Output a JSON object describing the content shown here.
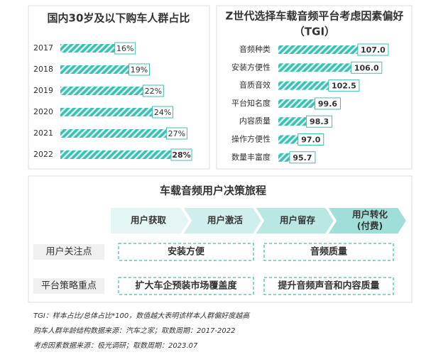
{
  "chart_data": [
    {
      "type": "hbar",
      "title": "国内30岁及以下购车人群占比",
      "categories": [
        "2017",
        "2018",
        "2019",
        "2020",
        "2021",
        "2022"
      ],
      "values": [
        16,
        19,
        22,
        24,
        27,
        28
      ],
      "value_labels": [
        "16%",
        "19%",
        "22%",
        "24%",
        "27%",
        "28%"
      ],
      "color": "#3dbfb3"
    },
    {
      "type": "hbar",
      "title": [
        "Z世代选择车载音频平台考虑因素偏好",
        "（TGI）"
      ],
      "categories": [
        "音频种类",
        "安装方便性",
        "音质音效",
        "平台知名度",
        "内容质量",
        "操作方便性",
        "数量丰富度"
      ],
      "values": [
        107.0,
        106.0,
        102.5,
        99.6,
        98.3,
        97.0,
        95.7
      ],
      "value_labels": [
        "107.0",
        "106.0",
        "102.5",
        "99.6",
        "98.3",
        "97.0",
        "95.7"
      ],
      "xlim": [
        90,
        108
      ],
      "color": "#3dbfb3"
    }
  ],
  "diagram": {
    "title": "车载音频用户决策旅程",
    "stages": [
      [
        "用户获取"
      ],
      [
        "用户激活"
      ],
      [
        "用户留存"
      ],
      [
        "用户转化",
        "(付费)"
      ]
    ],
    "rows": [
      {
        "label": "用户关注点",
        "items": [
          "安装方便",
          "音频质量"
        ]
      },
      {
        "label": "平台策略重点",
        "items": [
          "扩大车企预装市场覆盖度",
          "提升音频声音和内容质量"
        ]
      }
    ]
  },
  "notes": [
    "TGI：样本占比/总体占比*100，数值越大表明该样本人群偏好度越高",
    "购车人群年龄结构数据来源：汽车之家；取数周期：2017-2022",
    "考虑因素数据来源：极光调研；取数周期：2023.07"
  ]
}
